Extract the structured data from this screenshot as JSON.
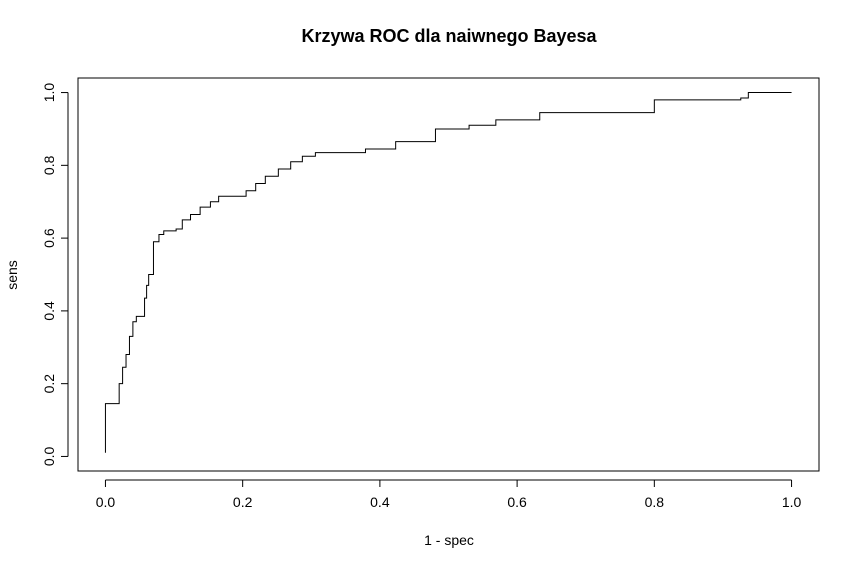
{
  "chart_data": {
    "type": "line",
    "title": "Krzywa ROC dla naiwnego Bayesa",
    "x_label": "1 - spec",
    "y_label": "sens",
    "color": "#000000",
    "xlim": [
      -0.04,
      1.04
    ],
    "ylim": [
      -0.04,
      1.04
    ],
    "xticks": [
      {
        "value": 0,
        "label": "0.0"
      },
      {
        "value": 0.2,
        "label": "0.2"
      },
      {
        "value": 0.4,
        "label": "0.4"
      },
      {
        "value": 0.6,
        "label": "0.6"
      },
      {
        "value": 0.8,
        "label": "0.8"
      },
      {
        "value": 1,
        "label": "1.0"
      }
    ],
    "yticks": [
      {
        "value": 0,
        "label": "0.0"
      },
      {
        "value": 0.2,
        "label": "0.2"
      },
      {
        "value": 0.4,
        "label": "0.4"
      },
      {
        "value": 0.6,
        "label": "0.6"
      },
      {
        "value": 0.8,
        "label": "0.8"
      },
      {
        "value": 1,
        "label": "1.0"
      }
    ],
    "x": [
      0,
      0,
      0.02,
      0.02,
      0.025,
      0.025,
      0.03,
      0.03,
      0.035,
      0.035,
      0.04,
      0.04,
      0.045,
      0.045,
      0.057,
      0.057,
      0.06,
      0.06,
      0.063,
      0.063,
      0.07,
      0.07,
      0.078,
      0.078,
      0.085,
      0.085,
      0.103,
      0.103,
      0.112,
      0.112,
      0.124,
      0.124,
      0.138,
      0.138,
      0.153,
      0.153,
      0.165,
      0.165,
      0.205,
      0.205,
      0.219,
      0.219,
      0.233,
      0.233,
      0.252,
      0.252,
      0.27,
      0.27,
      0.287,
      0.287,
      0.306,
      0.306,
      0.379,
      0.379,
      0.423,
      0.423,
      0.481,
      0.481,
      0.53,
      0.53,
      0.569,
      0.569,
      0.633,
      0.633,
      0.8,
      0.8,
      0.926,
      0.926,
      0.937,
      0.937,
      1
    ],
    "y": [
      0.01,
      0.145,
      0.145,
      0.2,
      0.2,
      0.245,
      0.245,
      0.28,
      0.28,
      0.33,
      0.33,
      0.37,
      0.37,
      0.385,
      0.385,
      0.435,
      0.435,
      0.47,
      0.47,
      0.5,
      0.5,
      0.59,
      0.59,
      0.61,
      0.61,
      0.62,
      0.62,
      0.625,
      0.625,
      0.65,
      0.65,
      0.665,
      0.665,
      0.685,
      0.685,
      0.7,
      0.7,
      0.715,
      0.715,
      0.73,
      0.73,
      0.75,
      0.75,
      0.77,
      0.77,
      0.79,
      0.79,
      0.81,
      0.81,
      0.825,
      0.825,
      0.835,
      0.835,
      0.845,
      0.845,
      0.865,
      0.865,
      0.9,
      0.9,
      0.91,
      0.91,
      0.925,
      0.925,
      0.945,
      0.945,
      0.98,
      0.98,
      0.985,
      0.985,
      1,
      1
    ]
  }
}
